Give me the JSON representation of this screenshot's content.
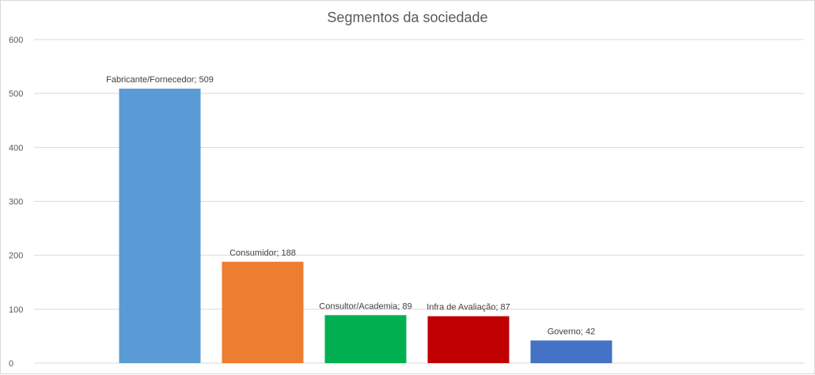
{
  "chart_data": {
    "type": "bar",
    "title": "Segmentos da sociedade",
    "categories": [
      "Fabricante/Fornecedor",
      "Consumidor",
      "Consultor/Academia",
      "Infra de Avaliação",
      "Governo"
    ],
    "values": [
      509,
      188,
      89,
      87,
      42
    ],
    "data_labels": [
      "Fabricante/Fornecedor; 509",
      "Consumidor; 188",
      "Consultor/Academia; 89",
      "Infra de Avaliação; 87",
      "Governo; 42"
    ],
    "colors": [
      "#5b9bd5",
      "#ed7d31",
      "#00b050",
      "#c00000",
      "#4472c4"
    ],
    "ylim": [
      0,
      600
    ],
    "yticks": [
      "0",
      "100",
      "200",
      "300",
      "400",
      "500",
      "600"
    ],
    "grid": true,
    "legend": "none",
    "xlabel": "",
    "ylabel": ""
  }
}
